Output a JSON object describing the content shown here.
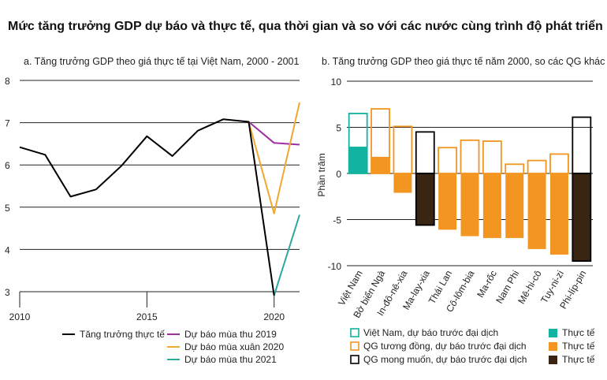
{
  "title": "Mức tăng trưởng GDP dự báo và thực tế, qua thời gian và so với các nước cùng trình độ phát triển",
  "colors": {
    "actual": "#000000",
    "fc2019": "#9c2fa3",
    "fc2020": "#f0a830",
    "fc2021": "#2ba8a0",
    "vn": "#12b3a0",
    "peer": "#f39521",
    "aspire": "#3a2412",
    "peer_outline": "#f39521",
    "vn_outline": "#12b3a0",
    "aspire_outline": "#000000"
  },
  "chart_data": [
    {
      "id": "a",
      "type": "line",
      "title": "a. Tăng trưởng GDP theo giá thực tế tại Việt Nam, 2000 - 2001",
      "xlim": [
        2010,
        2021
      ],
      "ylim": [
        3,
        8
      ],
      "x_ticks": [
        2010,
        2015,
        2020
      ],
      "y_ticks": [
        3,
        4,
        5,
        6,
        7,
        8
      ],
      "grid": true,
      "series": [
        {
          "name": "Tăng trưởng thực tế",
          "color_key": "actual",
          "x": [
            2010,
            2011,
            2012,
            2013,
            2014,
            2015,
            2016,
            2017,
            2018,
            2019,
            2020,
            2021
          ],
          "y": [
            6.42,
            6.24,
            5.25,
            5.42,
            5.98,
            6.68,
            6.21,
            6.81,
            7.08,
            7.02,
            2.91,
            null
          ]
        },
        {
          "name": "Dự báo mùa thu 2019",
          "color_key": "fc2019",
          "x": [
            2019,
            2020,
            2021
          ],
          "y": [
            7.02,
            6.52,
            6.48
          ]
        },
        {
          "name": "Dự báo mùa xuân 2020",
          "color_key": "fc2020",
          "x": [
            2019,
            2020,
            2021
          ],
          "y": [
            7.02,
            4.85,
            7.48
          ]
        },
        {
          "name": "Dự báo mùa thu 2021",
          "color_key": "fc2021",
          "x": [
            2020,
            2021
          ],
          "y": [
            2.91,
            4.82
          ]
        }
      ]
    },
    {
      "id": "b",
      "type": "bar",
      "title": "b. Tăng trưởng GDP theo giá thực tế năm 2000, so các QG khác",
      "ylabel": "Phần trăm",
      "ylim": [
        -10,
        10
      ],
      "y_ticks": [
        -10,
        -5,
        0,
        5,
        10
      ],
      "grid": true,
      "categories": [
        "Việt Nam",
        "Bờ biển Ngà",
        "In-đô-nê-xia",
        "Ma-lay-xia",
        "Thái Lan",
        "Cô-lôm-bia",
        "Ma-rốc",
        "Nam Phi",
        "Mê-hi-cô",
        "Tuy-ni-zi",
        "Phi-líp-pin"
      ],
      "groups": [
        "vn",
        "peer",
        "peer",
        "aspire",
        "peer",
        "peer",
        "peer",
        "peer",
        "peer",
        "peer",
        "aspire"
      ],
      "forecast": [
        6.5,
        7.0,
        5.1,
        4.5,
        2.8,
        3.6,
        3.5,
        1.0,
        1.4,
        2.1,
        6.1
      ],
      "actual": [
        2.9,
        1.8,
        -2.1,
        -5.6,
        -6.1,
        -6.8,
        -7.0,
        -7.0,
        -8.2,
        -8.8,
        -9.5
      ]
    }
  ],
  "legend_a": {
    "actual": "Tăng trưởng thực tế",
    "fc2019": "Dự báo mùa thu 2019",
    "fc2020": "Dự báo mùa xuân 2020",
    "fc2021": "Dự báo mùa thu 2021"
  },
  "legend_b": {
    "vn_forecast": "Việt Nam, dự báo trước đại dịch",
    "peer_forecast": "QG tương đồng, dự báo trước đại dịch",
    "aspire_forecast": "QG mong muốn, dự báo trước đại dịch",
    "vn_actual": "Thực tế",
    "peer_actual": "Thực tế",
    "aspire_actual": "Thực tế"
  }
}
